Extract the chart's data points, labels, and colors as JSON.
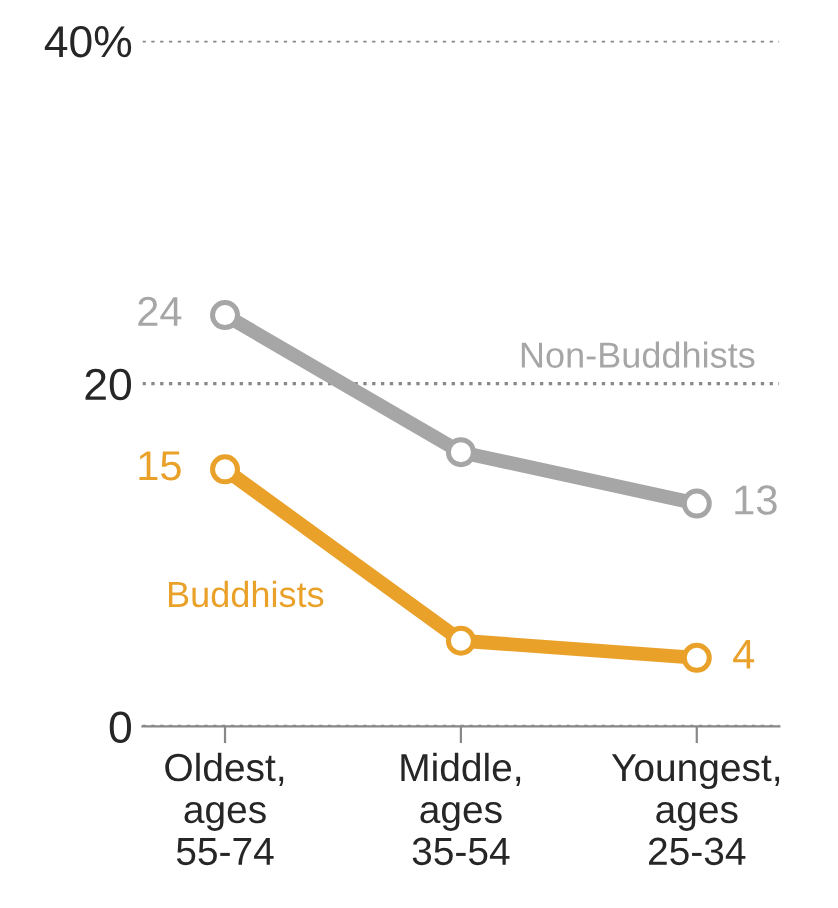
{
  "chart_data": {
    "type": "line",
    "categories": [
      "Oldest,\nages\n55-74",
      "Middle,\nages\n35-54",
      "Youngest,\nages\n25-34"
    ],
    "series": [
      {
        "name": "Non-Buddhists",
        "color": "#a6a6a6",
        "values": [
          24,
          16,
          13
        ],
        "value_labels": [
          "24",
          null,
          "13"
        ]
      },
      {
        "name": "Buddhists",
        "color": "#e9a12a",
        "values": [
          15,
          5,
          4
        ],
        "value_labels": [
          "15",
          null,
          "4"
        ]
      }
    ],
    "ylim": [
      0,
      40
    ],
    "yticks": [
      0,
      20,
      {
        "value": 40,
        "label": "40%"
      }
    ],
    "grid": "y",
    "legend": false,
    "marker": "circle",
    "line_style": "solid"
  }
}
